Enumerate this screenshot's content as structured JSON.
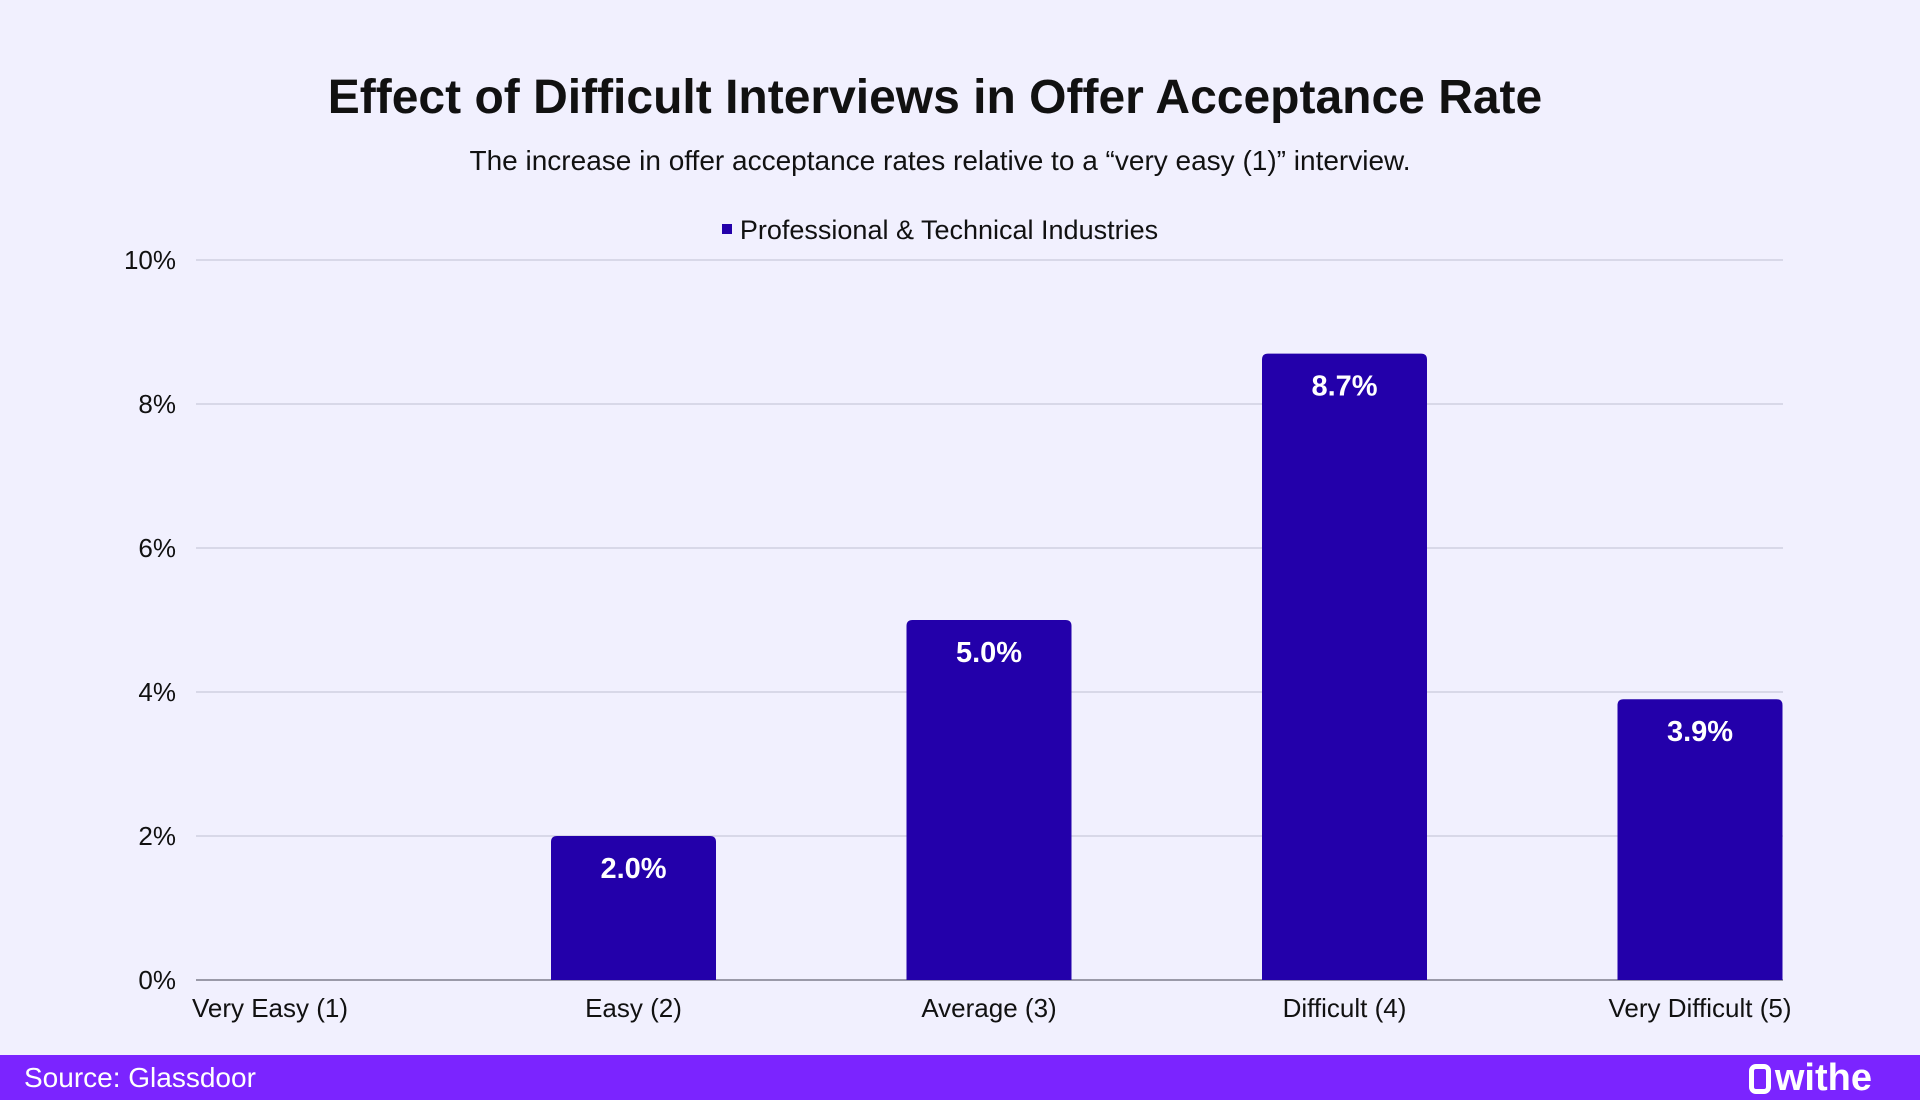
{
  "chart_data": {
    "type": "bar",
    "title": "Effect of Difficult Interviews in Offer Acceptance Rate",
    "subtitle": "The increase in offer acceptance rates relative to a “very easy (1)” interview.",
    "categories": [
      "Very Easy (1)",
      "Easy (2)",
      "Average (3)",
      "Difficult (4)",
      "Very Difficult (5)"
    ],
    "series": [
      {
        "name": "Professional & Technical Industries",
        "values": [
          0,
          2.0,
          5.0,
          8.7,
          3.9
        ],
        "data_labels": [
          "",
          "2.0%",
          "5.0%",
          "8.7%",
          "3.9%"
        ],
        "color": "#2300AA"
      }
    ],
    "ylim": [
      0,
      10
    ],
    "yticks": [
      "0%",
      "2%",
      "4%",
      "6%",
      "8%",
      "10%"
    ],
    "grid": true,
    "legend": "top-center",
    "xlabel": "",
    "ylabel": ""
  },
  "footer": {
    "source": "Source: Glassdoor",
    "logo_text": "withe"
  },
  "colors": {
    "background": "#F1F0FE",
    "footer": "#7B24FF",
    "bar": "#2300AA"
  }
}
